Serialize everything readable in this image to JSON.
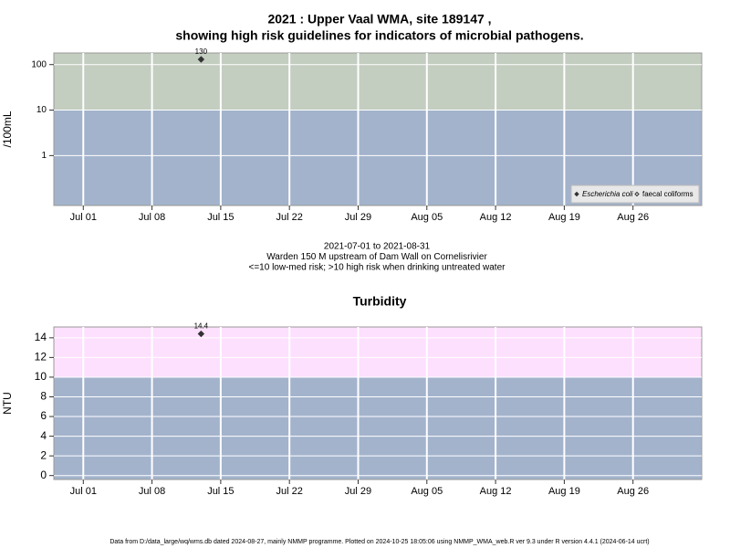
{
  "chart_data": [
    {
      "type": "scatter",
      "title": [
        "2021 : Upper Vaal WMA, site 189147 ,",
        "showing high risk guidelines for indicators of microbial pathogens."
      ],
      "ylabel": "/100mL",
      "x": [
        "2021-07-13"
      ],
      "series": [
        {
          "name": "Escherichia coli",
          "color": "#333333",
          "marker": "filled-diamond",
          "values": [
            130
          ],
          "value_labels": [
            "130"
          ]
        },
        {
          "name": "faecal coliforms",
          "color": "#333333",
          "marker": "open-diamond",
          "values": [
            null
          ]
        }
      ],
      "xlim": [
        "2021-06-28",
        "2021-09-02"
      ],
      "xticks": [
        {
          "value": "2021-07-01",
          "label": "Jul 01"
        },
        {
          "value": "2021-07-08",
          "label": "Jul 08"
        },
        {
          "value": "2021-07-15",
          "label": "Jul 15"
        },
        {
          "value": "2021-07-22",
          "label": "Jul 22"
        },
        {
          "value": "2021-07-29",
          "label": "Jul 29"
        },
        {
          "value": "2021-08-05",
          "label": "Aug 05"
        },
        {
          "value": "2021-08-12",
          "label": "Aug 12"
        },
        {
          "value": "2021-08-19",
          "label": "Aug 19"
        },
        {
          "value": "2021-08-26",
          "label": "Aug 26"
        }
      ],
      "ylim": [
        0.08,
        180
      ],
      "yticks": [
        1,
        10,
        100
      ],
      "log_y": true,
      "threshold": 10,
      "color_below": "#a3b3cc",
      "color_above": "#c3cdc0",
      "grid": true,
      "legend": "lower right",
      "notes": [
        "2021-07-01 to 2021-08-31",
        "Warden 150 M upstream of Dam Wall on Cornelisrivier",
        "<=10 low-med risk; >10 high risk when drinking untreated water"
      ]
    },
    {
      "type": "scatter",
      "title": [
        "Turbidity"
      ],
      "ylabel": "NTU",
      "x": [
        "2021-07-13"
      ],
      "series": [
        {
          "name": "Turbidity",
          "color": "#333333",
          "marker": "filled-diamond",
          "values": [
            14.4
          ],
          "value_labels": [
            "14.4"
          ]
        }
      ],
      "xlim": [
        "2021-06-28",
        "2021-09-02"
      ],
      "xticks": [
        {
          "value": "2021-07-01",
          "label": "Jul 01"
        },
        {
          "value": "2021-07-08",
          "label": "Jul 08"
        },
        {
          "value": "2021-07-15",
          "label": "Jul 15"
        },
        {
          "value": "2021-07-22",
          "label": "Jul 22"
        },
        {
          "value": "2021-07-29",
          "label": "Jul 29"
        },
        {
          "value": "2021-08-05",
          "label": "Aug 05"
        },
        {
          "value": "2021-08-12",
          "label": "Aug 12"
        },
        {
          "value": "2021-08-19",
          "label": "Aug 19"
        },
        {
          "value": "2021-08-26",
          "label": "Aug 26"
        }
      ],
      "ylim": [
        -0.4,
        15.1
      ],
      "yticks": [
        0,
        2,
        4,
        6,
        8,
        10,
        12,
        14
      ],
      "log_y": false,
      "threshold": 10,
      "color_below": "#a3b3cc",
      "color_above": "#fde0fd",
      "grid": true
    }
  ],
  "footer": "Data from D:/data_large/wq/wms.db dated 2024-08-27, mainly NMMP programme. Plotted on 2024-10-25 18:05:06 using NMMP_WMA_web.R ver 9.3 under R version 4.4.1 (2024-06-14 ucrt)"
}
